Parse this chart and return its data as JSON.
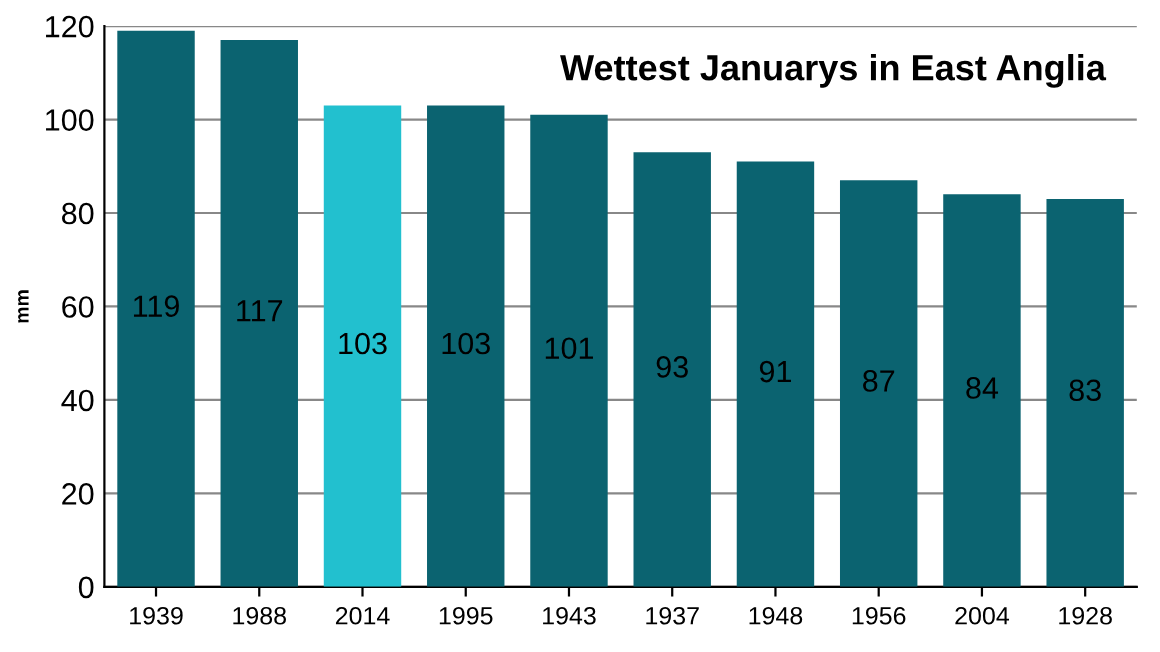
{
  "chart_data": {
    "type": "bar",
    "title": "Wettest Januarys in East Anglia",
    "ylabel": "mm",
    "categories": [
      "1939",
      "1988",
      "2014",
      "1995",
      "1943",
      "1937",
      "1948",
      "1956",
      "2004",
      "1928"
    ],
    "values": [
      119,
      117,
      103,
      103,
      101,
      93,
      91,
      87,
      84,
      83
    ],
    "colors": [
      "#0b6370",
      "#0b6370",
      "#22c0cf",
      "#0b6370",
      "#0b6370",
      "#0b6370",
      "#0b6370",
      "#0b6370",
      "#0b6370",
      "#0b6370"
    ],
    "ylim": [
      0,
      120
    ],
    "yticks": [
      0,
      20,
      40,
      60,
      80,
      100,
      120
    ],
    "grid": "y",
    "data_labels": true
  }
}
